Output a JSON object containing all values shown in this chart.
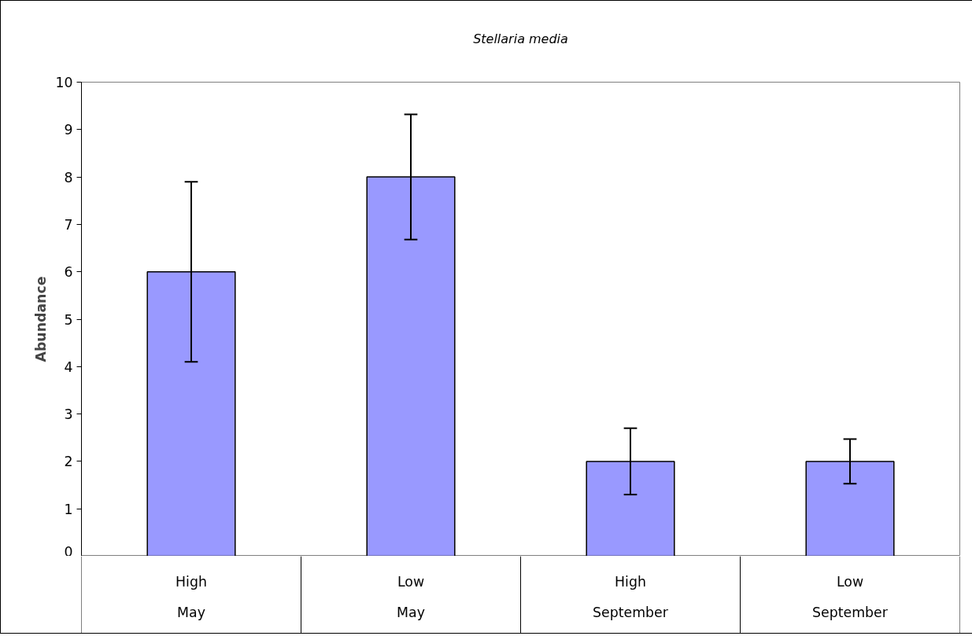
{
  "chart_data": {
    "type": "bar",
    "title": "Stellaria media",
    "ylabel": "Abundance",
    "categories": [
      "High\nMay",
      "Low\nMay",
      "High\nSeptember",
      "Low\nSeptember"
    ],
    "values": [
      6,
      8,
      2,
      2
    ],
    "errors": [
      1.9,
      1.32,
      0.7,
      0.47
    ],
    "color": "#9999ff",
    "ylim": [
      0,
      10
    ],
    "yticks": [
      0,
      1,
      2,
      3,
      4,
      5,
      6,
      7,
      8,
      9,
      10
    ]
  }
}
